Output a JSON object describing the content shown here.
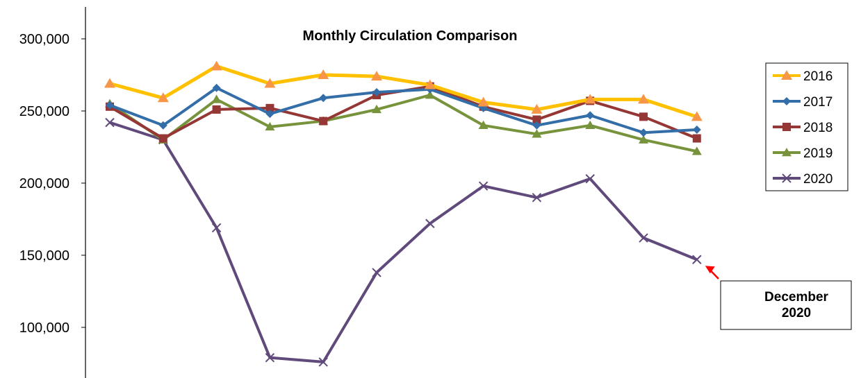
{
  "chart_data": {
    "type": "line",
    "title": "Monthly Circulation Comparison",
    "xlabel": "",
    "ylabel": "",
    "ylim": [
      70000,
      310000
    ],
    "y_ticks": [
      100000,
      150000,
      200000,
      250000,
      300000
    ],
    "y_tick_labels": [
      "100,000",
      "150,000",
      "200,000",
      "250,000",
      "300,000"
    ],
    "x_points": 12,
    "grid": false,
    "legend_position": "right",
    "series": [
      {
        "name": "2016",
        "color": "#FFC000",
        "marker": "triangle-orange",
        "values": [
          269000,
          259000,
          281000,
          269000,
          275000,
          274000,
          268000,
          256000,
          251000,
          258000,
          258000,
          246000
        ]
      },
      {
        "name": "2017",
        "color": "#336EA8",
        "marker": "diamond",
        "values": [
          254000,
          240000,
          266000,
          248000,
          259000,
          263000,
          265000,
          252000,
          240000,
          247000,
          235000,
          237000
        ]
      },
      {
        "name": "2018",
        "color": "#953735",
        "marker": "square",
        "values": [
          253000,
          231000,
          251000,
          252000,
          243000,
          261000,
          267000,
          253000,
          244000,
          257000,
          246000,
          231000
        ]
      },
      {
        "name": "2019",
        "color": "#77933C",
        "marker": "triangle",
        "values": [
          255000,
          230000,
          258000,
          239000,
          243000,
          251000,
          261000,
          240000,
          234000,
          240000,
          230000,
          222000
        ]
      },
      {
        "name": "2020",
        "color": "#604A7B",
        "marker": "x",
        "values": [
          242000,
          230000,
          169000,
          79000,
          76000,
          138000,
          172000,
          198000,
          190000,
          203000,
          162000,
          147000
        ]
      }
    ],
    "annotation": {
      "lines": [
        "December",
        "2020"
      ],
      "points_to": {
        "series": "2020",
        "index": 11
      },
      "arrow_color": "#FF0000"
    }
  }
}
